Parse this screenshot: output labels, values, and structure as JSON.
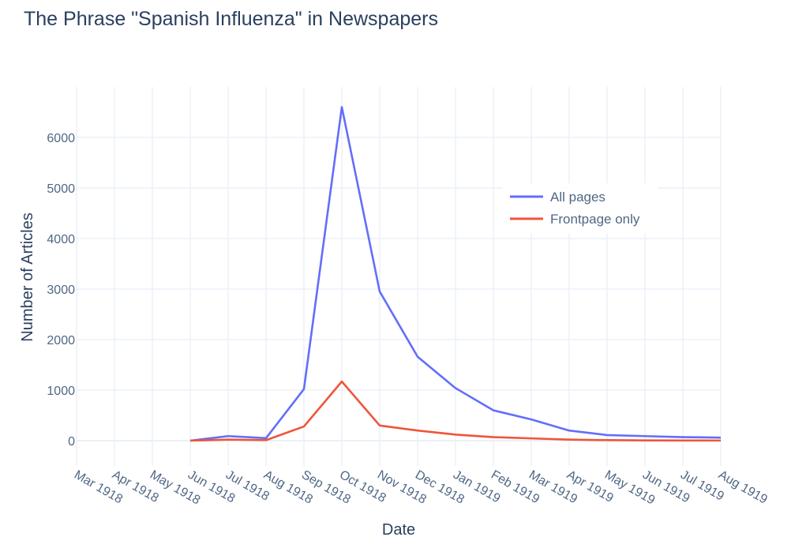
{
  "chart_data": {
    "type": "line",
    "title": "The Phrase \"Spanish Influenza\" in Newspapers",
    "xlabel": "Date",
    "ylabel": "Number of Articles",
    "x": [
      "Jun 1918",
      "Jul 1918",
      "Aug 1918",
      "Sep 1918",
      "Oct 1918",
      "Nov 1918",
      "Dec 1918",
      "Jan 1919",
      "Feb 1919",
      "Mar 1919",
      "Apr 1919",
      "May 1919",
      "Jun 1919",
      "Jul 1919",
      "Aug 1919"
    ],
    "x_ticks": [
      "Mar 1918",
      "Apr 1918",
      "May 1918",
      "Jun 1918",
      "Jul 1918",
      "Aug 1918",
      "Sep 1918",
      "Oct 1918",
      "Nov 1918",
      "Dec 1918",
      "Jan 1919",
      "Feb 1919",
      "Mar 1919",
      "Apr 1919",
      "May 1919",
      "Jun 1919",
      "Jul 1919",
      "Aug 1919"
    ],
    "y_ticks": [
      "0",
      "1000",
      "2000",
      "3000",
      "4000",
      "5000",
      "6000"
    ],
    "ylim": [
      -500,
      7000
    ],
    "grid": true,
    "legend_position": "top-right",
    "series": [
      {
        "name": "All pages",
        "color": "#636efa",
        "values": [
          0,
          90,
          50,
          1020,
          6600,
          2950,
          1660,
          1040,
          600,
          420,
          200,
          110,
          90,
          70,
          60
        ]
      },
      {
        "name": "Frontpage only",
        "color": "#ef553b",
        "values": [
          0,
          20,
          10,
          280,
          1170,
          300,
          200,
          120,
          70,
          45,
          20,
          10,
          5,
          3,
          2
        ]
      }
    ]
  }
}
